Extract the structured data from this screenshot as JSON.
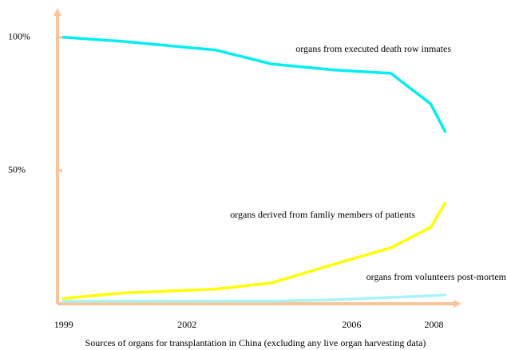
{
  "chart_data": {
    "type": "line",
    "xlabel": "Sources of organs for transplantation in China (excluding any live organ harvesting data)",
    "x": [
      1999,
      2000.4,
      2002.7,
      2004.05,
      2005.6,
      2006.95,
      2007.92,
      2008.27
    ],
    "series": [
      {
        "name": "organs from executed death row inmates",
        "color": "#00eef0",
        "values": [
          100,
          98.5,
          95.2,
          90,
          87.7,
          86.5,
          75,
          64.7
        ]
      },
      {
        "name": "organs derived from famliy members of patients",
        "color": "#ffff00",
        "values": [
          2,
          4,
          5.5,
          7.8,
          15,
          21,
          28.7,
          37.7
        ]
      },
      {
        "name": "organs from volunteers post-mortem",
        "color": "#a8f4f4",
        "values": [
          1,
          1,
          1,
          1,
          1.5,
          2.4,
          3,
          3.3
        ]
      }
    ],
    "xlim": [
      1998.85,
      2008.67
    ],
    "ylim": [
      0,
      111
    ],
    "xticks": [
      1999,
      2002,
      2006,
      2008
    ],
    "yticks": [
      {
        "value": 50,
        "label": "50%"
      },
      {
        "value": 100,
        "label": "100%"
      }
    ],
    "axis_color": "#f8c49a"
  }
}
